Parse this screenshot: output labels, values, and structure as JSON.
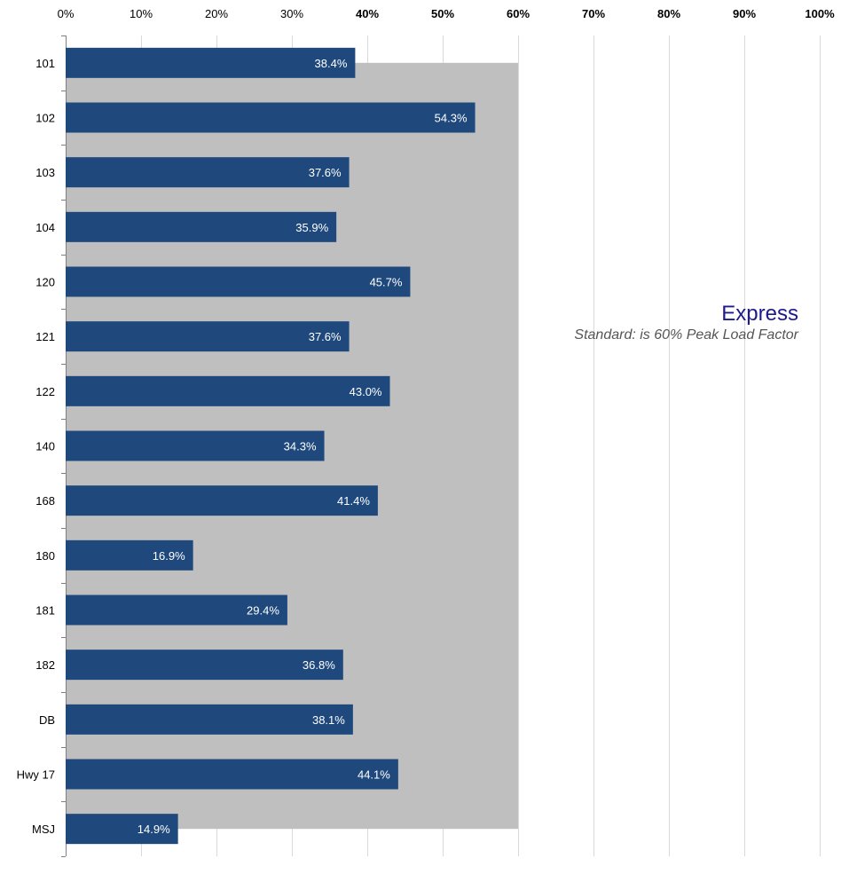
{
  "colors": {
    "bar": "#1f497d",
    "standard_band": "#bfbfbf",
    "gridline": "#d9d9d9",
    "axis": "#808080",
    "annotation_title": "#1c1a8c",
    "annotation_subtitle": "#555555"
  },
  "annotation": {
    "title": "Express",
    "subtitle": "Standard: is 60% Peak Load Factor"
  },
  "chart_data": {
    "type": "bar",
    "orientation": "horizontal",
    "categories": [
      "101",
      "102",
      "103",
      "104",
      "120",
      "121",
      "122",
      "140",
      "168",
      "180",
      "181",
      "182",
      "DB",
      "Hwy 17",
      "MSJ"
    ],
    "values": [
      38.4,
      54.3,
      37.6,
      35.9,
      45.7,
      37.6,
      43.0,
      34.3,
      41.4,
      16.9,
      29.4,
      36.8,
      38.1,
      44.1,
      14.9
    ],
    "data_labels": [
      "38.4%",
      "54.3%",
      "37.6%",
      "35.9%",
      "45.7%",
      "37.6%",
      "43.0%",
      "34.3%",
      "41.4%",
      "16.9%",
      "29.4%",
      "36.8%",
      "38.1%",
      "44.1%",
      "14.9%"
    ],
    "x_ticks": [
      0,
      10,
      20,
      30,
      40,
      50,
      60,
      70,
      80,
      90,
      100
    ],
    "x_tick_labels": [
      "0%",
      "10%",
      "20%",
      "30%",
      "40%",
      "50%",
      "60%",
      "70%",
      "80%",
      "90%",
      "100%"
    ],
    "bold_tick_labels": [
      "40%",
      "50%",
      "60%",
      "70%",
      "80%",
      "90%",
      "100%"
    ],
    "xlim": [
      0,
      100
    ],
    "x_axis_position": "top",
    "standard": 60,
    "grid": true,
    "title": "",
    "xlabel": "",
    "ylabel": ""
  }
}
